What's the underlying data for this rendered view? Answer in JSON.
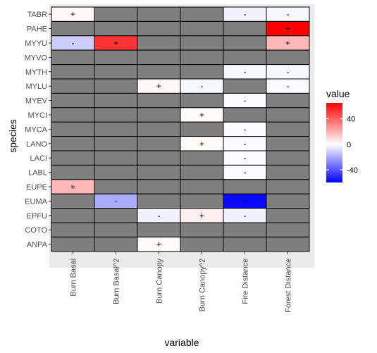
{
  "chart_data": {
    "type": "heatmap",
    "xlabel": "variable",
    "ylabel": "species",
    "x_categories": [
      "Burn Basal",
      "Burn Basal^2",
      "Burn Canopy",
      "Burn Canopy^2",
      "Fire Distance",
      "Forest Distance"
    ],
    "y_categories": [
      "TABR",
      "PAHE",
      "MYYU",
      "MYVO",
      "MYTH",
      "MYLU",
      "MYEV",
      "MYCI",
      "MYCA",
      "LANO",
      "LACI",
      "LABL",
      "EUPE",
      "EUMA",
      "EPFU",
      "COTO",
      "ANPA"
    ],
    "na_color": "#7f7f7f",
    "cells": [
      {
        "species": "TABR",
        "variable": "Burn Basal",
        "value": 2,
        "sign": "+"
      },
      {
        "species": "TABR",
        "variable": "Fire Distance",
        "value": -3,
        "sign": "-"
      },
      {
        "species": "TABR",
        "variable": "Forest Distance",
        "value": -2,
        "sign": "-"
      },
      {
        "species": "PAHE",
        "variable": "Forest Distance",
        "value": 65,
        "sign": "+"
      },
      {
        "species": "MYYU",
        "variable": "Burn Basal",
        "value": -12,
        "sign": "-"
      },
      {
        "species": "MYYU",
        "variable": "Burn Basal^2",
        "value": 52,
        "sign": "+"
      },
      {
        "species": "MYYU",
        "variable": "Forest Distance",
        "value": 18,
        "sign": "+"
      },
      {
        "species": "MYTH",
        "variable": "Fire Distance",
        "value": -2,
        "sign": "-"
      },
      {
        "species": "MYTH",
        "variable": "Forest Distance",
        "value": -2,
        "sign": "-"
      },
      {
        "species": "MYLU",
        "variable": "Burn Canopy",
        "value": 2,
        "sign": "+"
      },
      {
        "species": "MYLU",
        "variable": "Burn Canopy^2",
        "value": -2,
        "sign": "-"
      },
      {
        "species": "MYLU",
        "variable": "Forest Distance",
        "value": -1,
        "sign": "-"
      },
      {
        "species": "MYEV",
        "variable": "Fire Distance",
        "value": -1,
        "sign": "-"
      },
      {
        "species": "MYCI",
        "variable": "Burn Canopy^2",
        "value": 1,
        "sign": "+"
      },
      {
        "species": "MYCA",
        "variable": "Fire Distance",
        "value": -1,
        "sign": "-"
      },
      {
        "species": "LANO",
        "variable": "Burn Canopy^2",
        "value": 1,
        "sign": "+"
      },
      {
        "species": "LANO",
        "variable": "Fire Distance",
        "value": -1,
        "sign": "-"
      },
      {
        "species": "LACI",
        "variable": "Fire Distance",
        "value": -1,
        "sign": "-"
      },
      {
        "species": "LABL",
        "variable": "Fire Distance",
        "value": -1,
        "sign": "-"
      },
      {
        "species": "EUPE",
        "variable": "Burn Basal",
        "value": 18,
        "sign": "+"
      },
      {
        "species": "EUMA",
        "variable": "Burn Basal^2",
        "value": -20,
        "sign": "-"
      },
      {
        "species": "EUMA",
        "variable": "Fire Distance",
        "value": -58,
        "sign": "-"
      },
      {
        "species": "EPFU",
        "variable": "Burn Canopy",
        "value": -3,
        "sign": "-"
      },
      {
        "species": "EPFU",
        "variable": "Burn Canopy^2",
        "value": 4,
        "sign": "+"
      },
      {
        "species": "EPFU",
        "variable": "Fire Distance",
        "value": -3,
        "sign": "-"
      },
      {
        "species": "ANPA",
        "variable": "Burn Canopy",
        "value": 1,
        "sign": "+"
      }
    ],
    "legend": {
      "title": "value",
      "position": "right",
      "ticks": [
        40,
        0,
        -40
      ],
      "range": [
        -60,
        65
      ],
      "low_color": "#0000ff",
      "mid_color": "#ffffff",
      "high_color": "#ff0000"
    },
    "grid": false
  }
}
